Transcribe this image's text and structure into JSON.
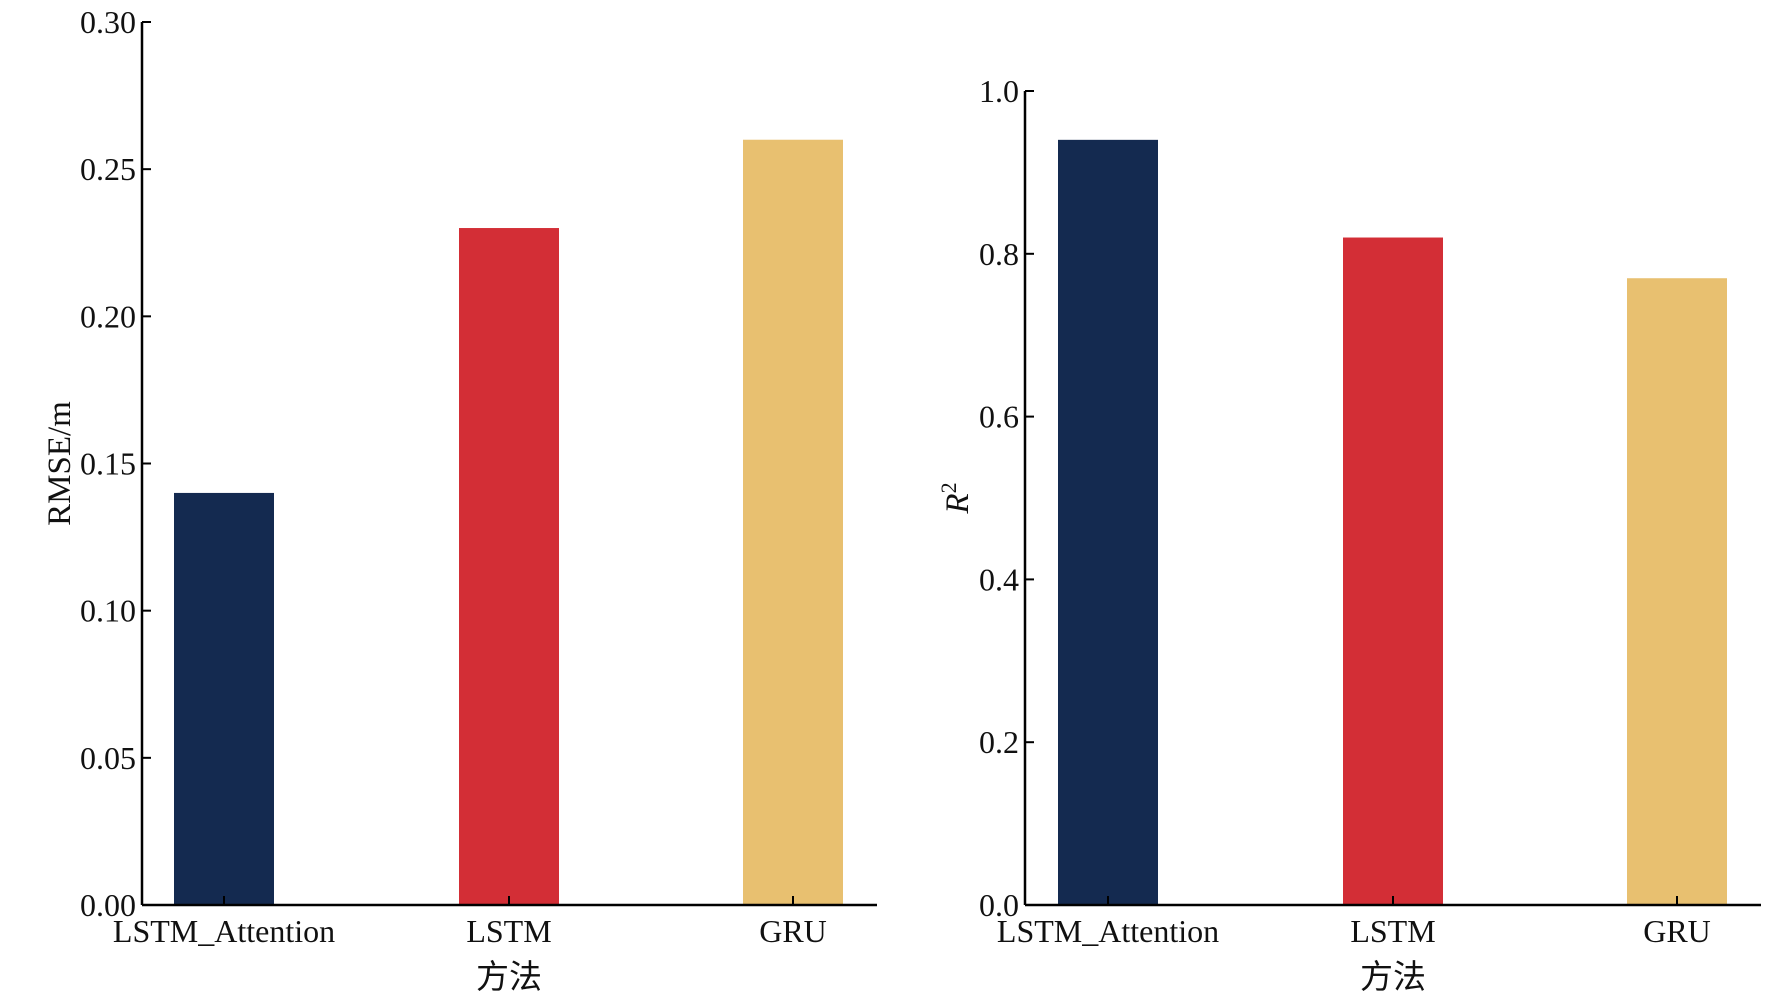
{
  "chart_data": [
    {
      "type": "bar",
      "categories": [
        "LSTM_Attention",
        "LSTM",
        "GRU"
      ],
      "values": [
        0.14,
        0.23,
        0.26
      ],
      "colors": [
        "#142a50",
        "#d32e36",
        "#e8c070"
      ],
      "xlabel": "方法",
      "ylabel": "RMSE/m",
      "ylim": [
        0,
        0.3
      ],
      "yticks": [
        "0.00",
        "0.05",
        "0.10",
        "0.15",
        "0.20",
        "0.25",
        "0.30"
      ],
      "grid": false
    },
    {
      "type": "bar",
      "categories": [
        "LSTM_Attention",
        "LSTM",
        "GRU"
      ],
      "values": [
        0.94,
        0.82,
        0.77
      ],
      "colors": [
        "#142a50",
        "#d32e36",
        "#e8c070"
      ],
      "xlabel": "方法",
      "ylabel": "R",
      "ylabel_sup": "2",
      "ylim": [
        0,
        1.0
      ],
      "yticks": [
        "0.0",
        "0.2",
        "0.4",
        "0.6",
        "0.8",
        "1.0"
      ],
      "grid": false
    }
  ]
}
